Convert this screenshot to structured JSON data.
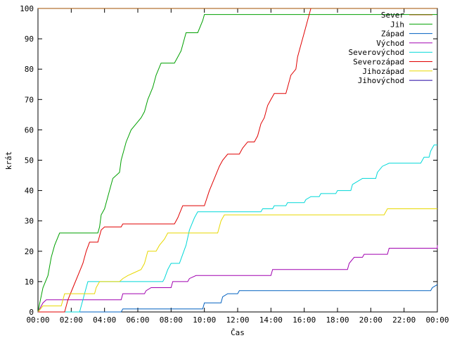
{
  "chart_data": {
    "type": "line",
    "title": "",
    "xlabel": "Čas",
    "ylabel": "krát",
    "xlim_hours": [
      0,
      24
    ],
    "ylim": [
      0,
      100
    ],
    "x_ticks": [
      {
        "h": 0,
        "label": "00:00"
      },
      {
        "h": 2,
        "label": "02:00"
      },
      {
        "h": 4,
        "label": "04:00"
      },
      {
        "h": 6,
        "label": "06:00"
      },
      {
        "h": 8,
        "label": "08:00"
      },
      {
        "h": 10,
        "label": "10:00"
      },
      {
        "h": 12,
        "label": "12:00"
      },
      {
        "h": 14,
        "label": "14:00"
      },
      {
        "h": 16,
        "label": "16:00"
      },
      {
        "h": 18,
        "label": "18:00"
      },
      {
        "h": 20,
        "label": "20:00"
      },
      {
        "h": 22,
        "label": "22:00"
      },
      {
        "h": 24,
        "label": "00:00"
      }
    ],
    "y_ticks": [
      0,
      10,
      20,
      30,
      40,
      50,
      60,
      70,
      80,
      90,
      100
    ],
    "grid": false,
    "legend_position": "top-right",
    "series": [
      {
        "name": "Sever",
        "color": "#a05000",
        "points": [
          [
            0,
            100
          ],
          [
            24,
            100
          ]
        ]
      },
      {
        "name": "Jih",
        "color": "#00a000",
        "points": [
          [
            0,
            0
          ],
          [
            0.15,
            4
          ],
          [
            0.3,
            8
          ],
          [
            0.6,
            12
          ],
          [
            0.8,
            18
          ],
          [
            1.0,
            22
          ],
          [
            1.3,
            26
          ],
          [
            3.6,
            26
          ],
          [
            3.7,
            28
          ],
          [
            3.8,
            32
          ],
          [
            4.0,
            34
          ],
          [
            4.2,
            38
          ],
          [
            4.4,
            42
          ],
          [
            4.5,
            44
          ],
          [
            4.9,
            46
          ],
          [
            5.0,
            50
          ],
          [
            5.3,
            56
          ],
          [
            5.6,
            60
          ],
          [
            5.9,
            62
          ],
          [
            6.2,
            64
          ],
          [
            6.4,
            66
          ],
          [
            6.6,
            70
          ],
          [
            6.9,
            74
          ],
          [
            7.1,
            78
          ],
          [
            7.4,
            82
          ],
          [
            8.2,
            82
          ],
          [
            8.6,
            86
          ],
          [
            8.9,
            92
          ],
          [
            9.6,
            92
          ],
          [
            9.9,
            96
          ],
          [
            10.0,
            98
          ],
          [
            24,
            98
          ]
        ]
      },
      {
        "name": "Západ",
        "color": "#0060c0",
        "points": [
          [
            0,
            0
          ],
          [
            5.0,
            0
          ],
          [
            5.1,
            1
          ],
          [
            9.9,
            1
          ],
          [
            10.0,
            3
          ],
          [
            11.0,
            3
          ],
          [
            11.1,
            5
          ],
          [
            11.4,
            6
          ],
          [
            12.0,
            6
          ],
          [
            12.1,
            7
          ],
          [
            23.6,
            7
          ],
          [
            23.7,
            8
          ],
          [
            24.0,
            9
          ]
        ]
      },
      {
        "name": "Východ",
        "color": "#a000b0",
        "points": [
          [
            0,
            0
          ],
          [
            0.3,
            3
          ],
          [
            0.5,
            4
          ],
          [
            5.0,
            4
          ],
          [
            5.1,
            6
          ],
          [
            6.4,
            6
          ],
          [
            6.5,
            7
          ],
          [
            6.8,
            8
          ],
          [
            8.0,
            8
          ],
          [
            8.1,
            10
          ],
          [
            9.0,
            10
          ],
          [
            9.1,
            11
          ],
          [
            9.5,
            12
          ],
          [
            14.0,
            12
          ],
          [
            14.1,
            14
          ],
          [
            18.6,
            14
          ],
          [
            18.7,
            16
          ],
          [
            19.0,
            18
          ],
          [
            19.5,
            18
          ],
          [
            19.6,
            19
          ],
          [
            21.0,
            19
          ],
          [
            21.1,
            21
          ],
          [
            24.0,
            21
          ],
          [
            24.0,
            22
          ]
        ]
      },
      {
        "name": "Severovýchod",
        "color": "#00d8d8",
        "points": [
          [
            0,
            0
          ],
          [
            2.5,
            0
          ],
          [
            2.7,
            4
          ],
          [
            2.9,
            8
          ],
          [
            3.0,
            10
          ],
          [
            7.5,
            10
          ],
          [
            7.6,
            11
          ],
          [
            7.8,
            14
          ],
          [
            8.0,
            16
          ],
          [
            8.5,
            16
          ],
          [
            8.7,
            19
          ],
          [
            8.9,
            22
          ],
          [
            9.1,
            27
          ],
          [
            9.4,
            31
          ],
          [
            9.6,
            33
          ],
          [
            13.4,
            33
          ],
          [
            13.5,
            34
          ],
          [
            14.1,
            34
          ],
          [
            14.2,
            35
          ],
          [
            14.9,
            35
          ],
          [
            15.0,
            36
          ],
          [
            16.0,
            36
          ],
          [
            16.1,
            37
          ],
          [
            16.4,
            38
          ],
          [
            16.9,
            38
          ],
          [
            17.0,
            39
          ],
          [
            17.9,
            39
          ],
          [
            18.0,
            40
          ],
          [
            18.8,
            40
          ],
          [
            18.9,
            42
          ],
          [
            19.2,
            43
          ],
          [
            19.5,
            44
          ],
          [
            20.3,
            44
          ],
          [
            20.4,
            46
          ],
          [
            20.7,
            48
          ],
          [
            21.1,
            49
          ],
          [
            23.0,
            49
          ],
          [
            23.2,
            51
          ],
          [
            23.5,
            51
          ],
          [
            23.6,
            53
          ],
          [
            23.8,
            55
          ],
          [
            24.0,
            55
          ]
        ]
      },
      {
        "name": "Severozápad",
        "color": "#e00000",
        "points": [
          [
            0,
            0
          ],
          [
            1.6,
            0
          ],
          [
            1.8,
            4
          ],
          [
            2.1,
            8
          ],
          [
            2.4,
            12
          ],
          [
            2.7,
            16
          ],
          [
            2.9,
            20
          ],
          [
            3.1,
            23
          ],
          [
            3.6,
            23
          ],
          [
            3.8,
            27
          ],
          [
            4.0,
            28
          ],
          [
            5.0,
            28
          ],
          [
            5.1,
            29
          ],
          [
            8.2,
            29
          ],
          [
            8.4,
            31
          ],
          [
            8.7,
            35
          ],
          [
            10.0,
            35
          ],
          [
            10.3,
            40
          ],
          [
            10.6,
            44
          ],
          [
            10.9,
            48
          ],
          [
            11.1,
            50
          ],
          [
            11.4,
            52
          ],
          [
            12.1,
            52
          ],
          [
            12.3,
            54
          ],
          [
            12.6,
            56
          ],
          [
            13.0,
            56
          ],
          [
            13.2,
            58
          ],
          [
            13.4,
            62
          ],
          [
            13.6,
            64
          ],
          [
            13.8,
            68
          ],
          [
            14.0,
            70
          ],
          [
            14.2,
            72
          ],
          [
            14.9,
            72
          ],
          [
            15.0,
            74
          ],
          [
            15.2,
            78
          ],
          [
            15.5,
            80
          ],
          [
            15.6,
            84
          ],
          [
            15.8,
            88
          ],
          [
            16.0,
            92
          ],
          [
            16.2,
            96
          ],
          [
            16.4,
            100
          ]
        ]
      },
      {
        "name": "Jihozápad",
        "color": "#e8d800",
        "points": [
          [
            0,
            0
          ],
          [
            0.3,
            2
          ],
          [
            1.4,
            2
          ],
          [
            1.5,
            4
          ],
          [
            1.6,
            6
          ],
          [
            3.4,
            6
          ],
          [
            3.5,
            8
          ],
          [
            3.7,
            10
          ],
          [
            4.9,
            10
          ],
          [
            5.1,
            11
          ],
          [
            5.4,
            12
          ],
          [
            5.8,
            13
          ],
          [
            6.2,
            14
          ],
          [
            6.4,
            16
          ],
          [
            6.6,
            20
          ],
          [
            7.1,
            20
          ],
          [
            7.3,
            22
          ],
          [
            7.6,
            24
          ],
          [
            7.8,
            26
          ],
          [
            10.8,
            26
          ],
          [
            11.0,
            30
          ],
          [
            11.2,
            32
          ],
          [
            20.8,
            32
          ],
          [
            21.0,
            34
          ],
          [
            24.0,
            34
          ]
        ]
      },
      {
        "name": "Jihovýchod",
        "color": "#2000a0",
        "points": [
          [
            0,
            0
          ],
          [
            0.02,
            0
          ]
        ]
      }
    ]
  }
}
